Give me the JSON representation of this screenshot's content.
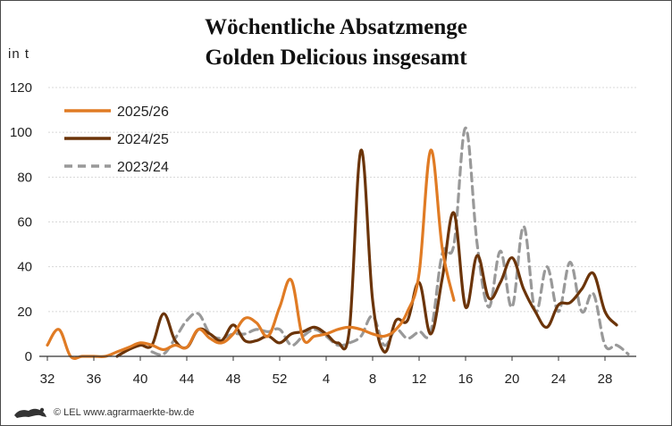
{
  "chart_data": {
    "type": "line",
    "title_lines": [
      "Wöchentliche Absatzmenge",
      "Golden Delicious insgesamt"
    ],
    "ylabel": "in t",
    "ylim": [
      0,
      120
    ],
    "y_ticks": [
      0,
      20,
      40,
      60,
      80,
      100,
      120
    ],
    "x_ticks": [
      "32",
      "36",
      "40",
      "44",
      "48",
      "52",
      "4",
      "8",
      "12",
      "16",
      "20",
      "24",
      "28"
    ],
    "grid": true,
    "legend_position": "top-left",
    "series": [
      {
        "name": "2025/26",
        "color": "#e07b24",
        "dash": "solid",
        "values": [
          5,
          12,
          0,
          0,
          0,
          0,
          2,
          4,
          6,
          5,
          3,
          5,
          4,
          12,
          8,
          6,
          10,
          17,
          15,
          9,
          22,
          34,
          8,
          9,
          10,
          12,
          13,
          12,
          10,
          9,
          12,
          20,
          37,
          92,
          48,
          25
        ]
      },
      {
        "name": "2024/25",
        "color": "#6b3409",
        "dash": "solid",
        "values": [
          null,
          null,
          null,
          null,
          null,
          null,
          0,
          3,
          5,
          5,
          19,
          7,
          4,
          12,
          10,
          7,
          14,
          7,
          7,
          9,
          6,
          10,
          11,
          13,
          10,
          6,
          12,
          92,
          25,
          2,
          16,
          16,
          33,
          10,
          35,
          64,
          22,
          45,
          26,
          33,
          44,
          30,
          20,
          13,
          23,
          24,
          30,
          37,
          20,
          14
        ]
      },
      {
        "name": "2023/24",
        "color": "#999999",
        "dash": "dashed",
        "values": [
          null,
          null,
          null,
          null,
          null,
          null,
          null,
          null,
          null,
          2,
          1,
          8,
          16,
          19,
          10,
          8,
          10,
          10,
          12,
          11,
          12,
          5,
          9,
          12,
          9,
          5,
          6,
          9,
          18,
          5,
          12,
          8,
          11,
          11,
          46,
          50,
          102,
          50,
          22,
          47,
          22,
          58,
          20,
          40,
          20,
          42,
          20,
          28,
          5,
          5,
          1
        ]
      }
    ]
  },
  "footer": {
    "logo_icon": "lion-logo-icon",
    "text": "© LEL www.agrarmaerkte-bw.de"
  }
}
